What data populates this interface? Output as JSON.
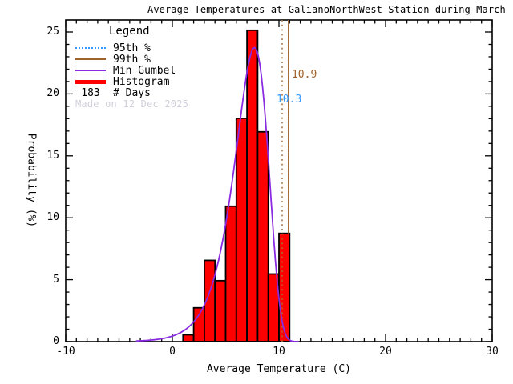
{
  "title": "Average Temperatures at GalianoNorthWest Station during March",
  "legend": {
    "title": "Legend",
    "items": [
      {
        "label": "95th %",
        "style": "dotted",
        "color": "#3399FF"
      },
      {
        "label": "99th %",
        "style": "solid",
        "color": "#A0622A"
      },
      {
        "label": "Min Gumbel",
        "style": "solid",
        "color": "#8A2BE2"
      },
      {
        "label": "Histogram",
        "style": "thick",
        "color": "#FF0000"
      }
    ],
    "days_value": "183",
    "days_label": "# Days"
  },
  "watermark": "Made on 12 Dec 2025",
  "watermark_color": "#D0D0DC",
  "annotations": {
    "p99": {
      "text": "10.9",
      "color": "#A0622A"
    },
    "p95": {
      "text": "10.3",
      "color": "#3399FF"
    }
  },
  "chart_data": {
    "type": "bar",
    "subtype": "histogram-with-fitted-distribution",
    "title": "Average Temperatures at GalianoNorthWest Station during March",
    "xlabel": "Average Temperature (C)",
    "ylabel": "Probability (%)",
    "xlim": [
      -10,
      30
    ],
    "ylim": [
      0,
      25
    ],
    "x_major_ticks": [
      -10,
      0,
      10,
      20,
      30
    ],
    "y_major_ticks": [
      0,
      5,
      10,
      15,
      20,
      25
    ],
    "x_minor_step": 1,
    "y_minor_step": 1,
    "grid": false,
    "legend_position": "top-left",
    "histogram": {
      "color": "#FF0000",
      "outline_color": "#000000",
      "bin_width_deg_c": 1,
      "bin_left_edges_deg_c": [
        1,
        2,
        3,
        4,
        5,
        6,
        7,
        8,
        9,
        10
      ],
      "counts_days": [
        1,
        5,
        12,
        9,
        20,
        33,
        46,
        31,
        10,
        16
      ],
      "heights_pct": [
        0.55,
        2.73,
        6.56,
        4.92,
        10.93,
        18.03,
        25.14,
        16.94,
        5.46,
        8.74
      ],
      "total_days": 183
    },
    "min_gumbel_fit": {
      "color": "#8A2BE2",
      "mu_deg_c": 7.7,
      "beta_deg_c": 1.55,
      "peak_pct": 23.7
    },
    "percentiles": {
      "p95": {
        "value_deg_c": 10.3,
        "line_style": "dotted",
        "line_color": "#B06F35",
        "label_color": "#3399FF"
      },
      "p99": {
        "value_deg_c": 10.9,
        "line_style": "solid",
        "line_color": "#A0622A",
        "label_color": "#A0622A"
      }
    }
  }
}
